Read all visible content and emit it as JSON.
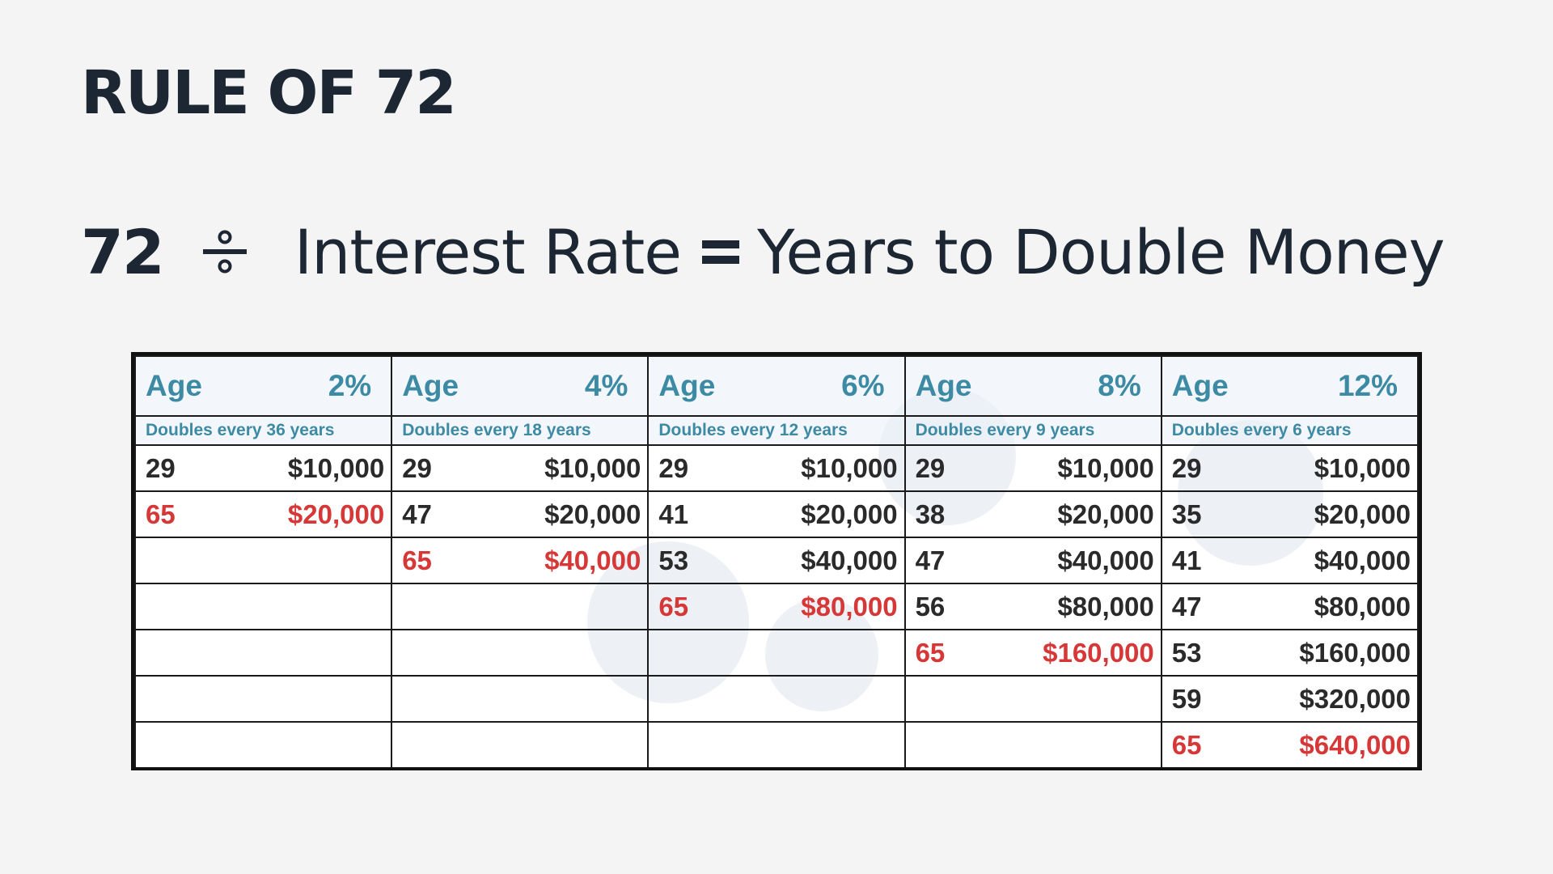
{
  "title": "RULE OF 72",
  "formula": {
    "number": "72",
    "phrase_left": "Interest Rate",
    "phrase_right": "Years to Double Money"
  },
  "table": {
    "columns": [
      {
        "age_label": "Age",
        "rate": "2%",
        "subtitle": "Doubles every 36 years",
        "rows": [
          {
            "age": "29",
            "value": "$10,000",
            "final": false
          },
          {
            "age": "65",
            "value": "$20,000",
            "final": true
          }
        ]
      },
      {
        "age_label": "Age",
        "rate": "4%",
        "subtitle": "Doubles every 18 years",
        "rows": [
          {
            "age": "29",
            "value": "$10,000",
            "final": false
          },
          {
            "age": "47",
            "value": "$20,000",
            "final": false
          },
          {
            "age": "65",
            "value": "$40,000",
            "final": true
          }
        ]
      },
      {
        "age_label": "Age",
        "rate": "6%",
        "subtitle": "Doubles every 12 years",
        "rows": [
          {
            "age": "29",
            "value": "$10,000",
            "final": false
          },
          {
            "age": "41",
            "value": "$20,000",
            "final": false
          },
          {
            "age": "53",
            "value": "$40,000",
            "final": false
          },
          {
            "age": "65",
            "value": "$80,000",
            "final": true
          }
        ]
      },
      {
        "age_label": "Age",
        "rate": "8%",
        "subtitle": "Doubles every 9 years",
        "rows": [
          {
            "age": "29",
            "value": "$10,000",
            "final": false
          },
          {
            "age": "38",
            "value": "$20,000",
            "final": false
          },
          {
            "age": "47",
            "value": "$40,000",
            "final": false
          },
          {
            "age": "56",
            "value": "$80,000",
            "final": false
          },
          {
            "age": "65",
            "value": "$160,000",
            "final": true
          }
        ]
      },
      {
        "age_label": "Age",
        "rate": "12%",
        "subtitle": "Doubles every 6 years",
        "rows": [
          {
            "age": "29",
            "value": "$10,000",
            "final": false
          },
          {
            "age": "35",
            "value": "$20,000",
            "final": false
          },
          {
            "age": "41",
            "value": "$40,000",
            "final": false
          },
          {
            "age": "47",
            "value": "$80,000",
            "final": false
          },
          {
            "age": "53",
            "value": "$160,000",
            "final": false
          },
          {
            "age": "59",
            "value": "$320,000",
            "final": false
          },
          {
            "age": "65",
            "value": "$640,000",
            "final": true
          }
        ]
      }
    ],
    "colors": {
      "header": "#3d8aa4",
      "final": "#d63737",
      "text": "#2a2a2a"
    }
  }
}
